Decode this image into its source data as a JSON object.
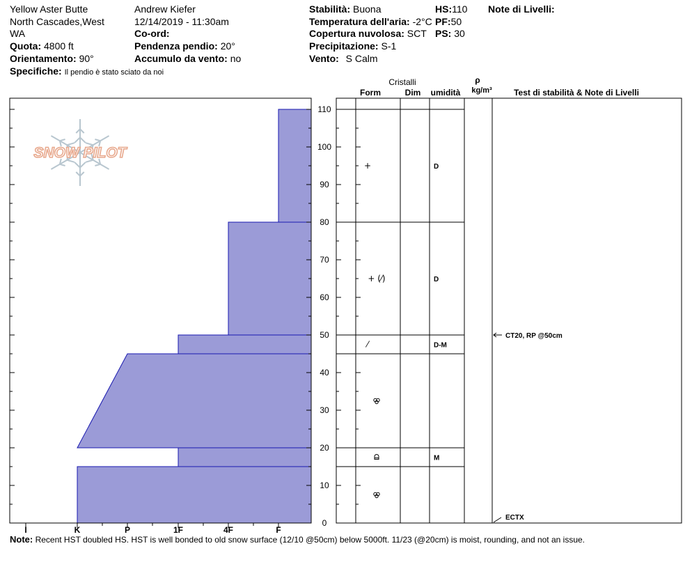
{
  "header": {
    "location": "Yellow Aster Butte",
    "region_line1": "North Cascades,West",
    "region_line2": "WA",
    "observer": "Andrew Kiefer",
    "datetime": "12/14/2019 - 11:30am",
    "coord_label": "Co-ord:",
    "coord_value": "",
    "quota_label": "Quota:",
    "quota_value": "4800 ft",
    "slope_label": "Pendenza pendio:",
    "slope_value": "20°",
    "aspect_label": "Orientamento:",
    "aspect_value": "90°",
    "wind_load_label": "Accumulo da vento:",
    "wind_load_value": "no",
    "specifics_label": "Specifiche:",
    "specifics_value": "Il pendio è stato sciato da noi",
    "stability_label": "Stabilità:",
    "stability_value": "Buona",
    "air_temp_label": "Temperatura dell'aria:",
    "air_temp_value": "-2°C",
    "cloud_label": "Copertura nuvolosa:",
    "cloud_value": "SCT",
    "precip_label": "Precipitazione:",
    "precip_value": "S-1",
    "wind_label": "Vento:",
    "wind_value": "S Calm",
    "hs_label": "HS:",
    "hs_value": "110",
    "pf_label": "PF:",
    "pf_value": "50",
    "ps_label": "PS:",
    "ps_value": "30",
    "layer_notes_label": "Note di Livelli:"
  },
  "logo_text": "SNOW PILOT",
  "note": {
    "label": "Note:",
    "text": "Recent HST doubled HS. HST is well bonded to old snow surface (12/10 @50cm) below 5000ft. 11/23 (@20cm) is moist, rounding, and not an issue."
  },
  "columns": {
    "cristalli": "Cristalli",
    "form": "Form",
    "dim": "Dim",
    "umidita": "umidità",
    "rho": "ρ",
    "density_unit": "kg/m³",
    "tests": "Test di stabilità & Note di Livelli"
  },
  "chart_data": {
    "type": "bar",
    "orientation": "horizontal-profile",
    "hardness_categories": [
      "I",
      "K",
      "P",
      "1F",
      "4F",
      "F"
    ],
    "y_ticks": [
      0,
      10,
      20,
      30,
      40,
      50,
      60,
      70,
      80,
      90,
      100,
      110
    ],
    "ylim": [
      0,
      110
    ],
    "ylabel": "",
    "xlabel": "",
    "fill_color": "#9b9bd7",
    "edge_color": "#1a1ab0",
    "layers": [
      {
        "bottom": 80,
        "top": 110,
        "hardness_bottom": "F",
        "hardness_top": "F",
        "form": "+",
        "wetness": "D"
      },
      {
        "bottom": 50,
        "top": 80,
        "hardness_bottom": "4F",
        "hardness_top": "4F",
        "form": "+ (⁄)",
        "wetness": "D"
      },
      {
        "bottom": 45,
        "top": 50,
        "hardness_bottom": "1F",
        "hardness_top": "1F",
        "form": "⁄",
        "wetness": "D-M"
      },
      {
        "bottom": 20,
        "top": 45,
        "hardness_bottom": "K",
        "hardness_top": "P",
        "form": "rounded",
        "wetness": ""
      },
      {
        "bottom": 15,
        "top": 20,
        "hardness_bottom": "1F",
        "hardness_top": "1F",
        "form": "melt",
        "wetness": "M"
      },
      {
        "bottom": 0,
        "top": 15,
        "hardness_bottom": "K",
        "hardness_top": "K",
        "form": "rounded",
        "wetness": ""
      }
    ],
    "stability_tests": [
      {
        "depth": 50,
        "label": "CT20, RP @50cm"
      },
      {
        "depth": 0,
        "label": "ECTX"
      }
    ]
  }
}
